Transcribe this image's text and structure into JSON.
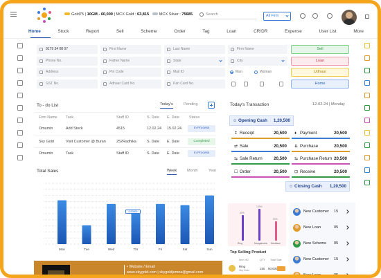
{
  "header": {
    "gold_label": "Gold75 | ",
    "gold_value": "10GM - 60,000",
    "mcx_gold_label": " | MCX Gold : ",
    "mcx_gold_value": "63,815",
    "mcx_silver_label": "MCX Silver : ",
    "mcx_silver_value": "75685",
    "search_placeholder": "Search",
    "firm_select": "All Firm",
    "brand_color": "#f4a51c"
  },
  "nav": {
    "items": [
      "Home",
      "Stock",
      "Report",
      "Sell",
      "Scheme",
      "Order",
      "Tag",
      "Loan",
      "CR/DR",
      "Expense",
      "User List",
      "More"
    ],
    "active": "Home"
  },
  "form": {
    "phone_value": "9179 34 08 07",
    "first_name": "First Name",
    "last_name": "Last Name",
    "firm_name": "Firm Name",
    "phone_no": "Phone No.",
    "father_name": "Father Name",
    "state": "State",
    "city": "City",
    "address": "Address",
    "pin_code": "Pin Code",
    "mail_id": "Mail ID",
    "gst_no": "GST No.",
    "aadhar": "Adhaar Card No.",
    "pan": "Pan Card No.",
    "gender_male": "Man",
    "gender_female": "Woman"
  },
  "actions": {
    "sell": "Sell",
    "loan": "Loan",
    "udhaar": "Udhaar",
    "home": "Home"
  },
  "todo": {
    "title": "To - do List",
    "tab_today": "Today's",
    "tab_pending": "Pending",
    "columns": [
      "Firm Name",
      "Task",
      "Staff ID",
      "S. Date",
      "E. Date",
      "Status"
    ],
    "rows": [
      {
        "firm": "Omumin",
        "task": "Add Stock",
        "staff": "4515",
        "sdate": "12.02.24",
        "edate": "15.02.24",
        "status": "In Process"
      },
      {
        "firm": "Sky Gold",
        "task": "Visit Customer @ Buran",
        "staff": "252Radhika",
        "sdate": "S. Date",
        "edate": "E. Date",
        "status": "Completed"
      },
      {
        "firm": "Omumin",
        "task": "Task",
        "staff": "Staff ID",
        "sdate": "S. Date",
        "edate": "E. Date",
        "status": "In Process"
      }
    ]
  },
  "sales": {
    "title": "Total Sales",
    "tab_week": "Week",
    "tab_month": "Month",
    "tab_year": "Year",
    "tooltip": "0.00000",
    "chart_data": {
      "type": "bar",
      "categories": [
        "Mon",
        "Tue",
        "Wed",
        "Thr",
        "Fri",
        "Sat",
        "Sun"
      ],
      "values": [
        72,
        31,
        66,
        52,
        66,
        64,
        80
      ],
      "ylim": [
        0,
        100
      ],
      "grid": true
    }
  },
  "footer": {
    "website_label": "• Website / Email",
    "website": "www.skygold.com",
    "email": "skygoldjemna@gmail.com"
  },
  "transactions": {
    "title": "Today's Transaction",
    "date": "12-02-24 | Monday",
    "opening": {
      "label": "Opening Cash",
      "value": "1,20,500"
    },
    "closing": {
      "label": "Closing Cash",
      "value": "1,20,500"
    },
    "left": [
      {
        "label": "Receipt",
        "value": "20,500",
        "color": "#e09b2d"
      },
      {
        "label": "Sale",
        "value": "20,500",
        "color": "#3a7bd5"
      },
      {
        "label": "Sale Return",
        "value": "20,500",
        "color": "#2e9a46"
      },
      {
        "label": "Order",
        "value": "20,500",
        "color": "#c94fb5"
      }
    ],
    "right": [
      {
        "label": "Payment",
        "value": "20,500",
        "color": "#3a7bd5"
      },
      {
        "label": "Purchase",
        "value": "20,500",
        "color": "#e09b2d"
      },
      {
        "label": "Purchase Return",
        "value": "20,500",
        "color": "#c94fb5"
      },
      {
        "label": "Receive",
        "value": "20,500",
        "color": "#2e9a46"
      }
    ]
  },
  "mini_chart": {
    "chart_data": {
      "type": "bar",
      "categories": [
        "Ring",
        "Mangalsutra",
        "Necklace"
      ],
      "values": [
        80,
        100,
        60
      ],
      "labels": [
        "80%",
        "100%",
        "60%"
      ],
      "colors": [
        "#6a3fc7",
        "#6a3fc7",
        "#e05a8a"
      ]
    }
  },
  "top_selling": {
    "title": "Top Selling Product",
    "columns": [
      "Item HD",
      "QTY",
      "Total Sale"
    ],
    "row": {
      "item": "Ring",
      "sub": "Sky Gold",
      "qty": "150",
      "total": "50,000"
    }
  },
  "right_list": [
    {
      "label": "New Customer",
      "count": "15"
    },
    {
      "label": "New Loan",
      "count": "05"
    },
    {
      "label": "New Scheme",
      "count": "05"
    },
    {
      "label": "New Customer",
      "count": "15"
    },
    {
      "label": "New Loan",
      "count": "05"
    }
  ]
}
